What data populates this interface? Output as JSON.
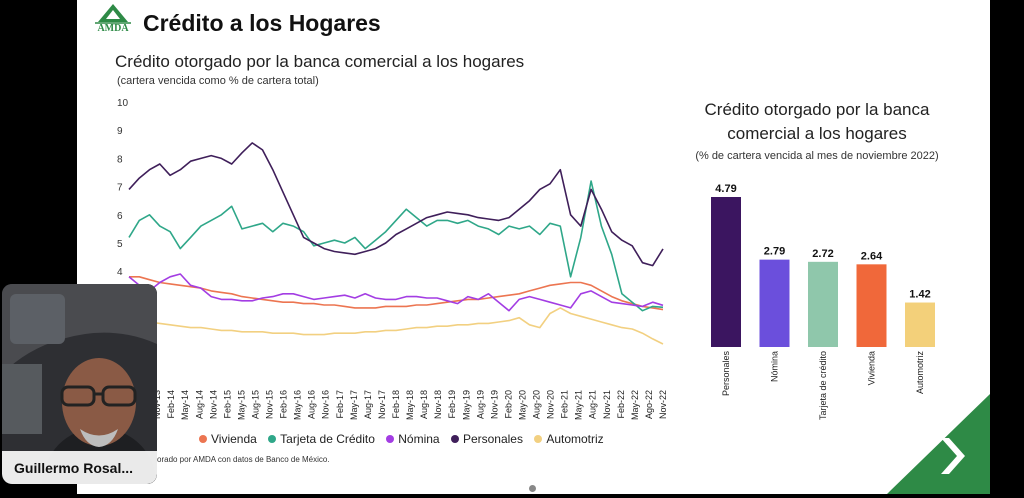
{
  "slide": {
    "logo_text": "AMDA",
    "title": "Crédito a los Hogares",
    "source_note": "orado por AMDA con datos de Banco de México."
  },
  "webcam": {
    "participant_name": "Guillermo Rosal..."
  },
  "chart_data": [
    {
      "type": "line",
      "title": "Crédito otorgado por la banca comercial a los hogares",
      "subtitle": "(cartera vencida como % de cartera total)",
      "ylim": [
        0,
        10
      ],
      "yticks": [
        "10",
        "9",
        "8",
        "7",
        "6",
        "5",
        "4"
      ],
      "xtick_labels": [
        "Aug-13",
        "Nov-13",
        "Feb-14",
        "May-14",
        "Aug-14",
        "Nov-14",
        "Feb-15",
        "May-15",
        "Aug-15",
        "Nov-15",
        "Feb-16",
        "May-16",
        "Aug-16",
        "Nov-16",
        "Feb-17",
        "May-17",
        "Aug-17",
        "Nov-17",
        "Feb-18",
        "May-18",
        "Aug-18",
        "Nov-18",
        "Feb-19",
        "May-19",
        "Aug-19",
        "Nov-19",
        "Feb-20",
        "May-20",
        "Aug-20",
        "Nov-20",
        "Feb-21",
        "May-21",
        "Aug-21",
        "Nov-21",
        "Feb-22",
        "May-22",
        "Ago-22",
        "Nov-22"
      ],
      "x_start_index": -1,
      "series": [
        {
          "name": "Vivienda",
          "color": "#ec7551",
          "values": [
            3.8,
            3.8,
            3.7,
            3.6,
            3.55,
            3.5,
            3.45,
            3.4,
            3.3,
            3.25,
            3.2,
            3.1,
            3.05,
            3.0,
            2.95,
            2.9,
            2.9,
            2.85,
            2.85,
            2.8,
            2.8,
            2.75,
            2.7,
            2.7,
            2.7,
            2.75,
            2.75,
            2.75,
            2.8,
            2.8,
            2.85,
            2.9,
            2.95,
            3.0,
            3.0,
            3.05,
            3.1,
            3.15,
            3.2,
            3.3,
            3.4,
            3.5,
            3.55,
            3.6,
            3.6,
            3.5,
            3.3,
            3.1,
            2.95,
            2.85,
            2.75,
            2.7,
            2.64
          ]
        },
        {
          "name": "Tarjeta de Crédito",
          "color": "#2fa789",
          "values": [
            5.2,
            5.8,
            6.0,
            5.6,
            5.4,
            4.8,
            5.2,
            5.6,
            5.8,
            6.0,
            6.3,
            5.5,
            5.6,
            5.7,
            5.4,
            5.7,
            5.6,
            5.4,
            4.9,
            5.0,
            5.1,
            5.0,
            5.2,
            4.8,
            5.1,
            5.4,
            5.8,
            6.2,
            5.9,
            5.6,
            5.8,
            5.8,
            5.7,
            5.8,
            5.6,
            5.5,
            5.3,
            5.6,
            5.5,
            5.6,
            5.3,
            5.7,
            5.6,
            3.8,
            5.2,
            7.2,
            5.6,
            4.6,
            3.2,
            2.9,
            2.6,
            2.75,
            2.72
          ]
        },
        {
          "name": "Nómina",
          "color": "#a33de3",
          "values": [
            3.8,
            3.5,
            3.3,
            3.6,
            3.8,
            3.9,
            3.5,
            3.4,
            3.1,
            3.0,
            3.0,
            2.95,
            2.95,
            3.05,
            3.1,
            3.2,
            3.2,
            3.1,
            3.0,
            3.05,
            3.1,
            3.15,
            3.05,
            3.2,
            3.05,
            3.0,
            3.0,
            3.1,
            3.1,
            3.05,
            3.05,
            2.95,
            2.85,
            3.1,
            3.0,
            3.2,
            2.9,
            2.6,
            3.0,
            3.1,
            3.0,
            2.9,
            2.8,
            2.7,
            3.2,
            3.3,
            3.1,
            2.9,
            2.85,
            2.8,
            2.75,
            2.9,
            2.79
          ]
        },
        {
          "name": "Personales",
          "color": "#3f1f5a",
          "values": [
            6.9,
            7.3,
            7.6,
            7.8,
            7.4,
            7.6,
            7.9,
            8.0,
            8.1,
            8.0,
            7.8,
            8.2,
            8.55,
            8.3,
            7.6,
            6.8,
            6.0,
            5.2,
            5.0,
            4.8,
            4.7,
            4.65,
            4.6,
            4.7,
            4.8,
            5.0,
            5.3,
            5.5,
            5.7,
            5.9,
            6.0,
            6.1,
            6.05,
            6.0,
            5.9,
            5.85,
            5.8,
            5.9,
            6.2,
            6.5,
            6.9,
            7.1,
            7.6,
            6.0,
            5.6,
            6.9,
            6.2,
            5.4,
            5.1,
            4.9,
            4.3,
            4.2,
            4.79
          ]
        },
        {
          "name": "Automotriz",
          "color": "#f2d081",
          "values": [
            2.4,
            2.3,
            2.2,
            2.15,
            2.1,
            2.05,
            2.0,
            2.0,
            1.95,
            1.9,
            1.9,
            1.85,
            1.85,
            1.85,
            1.8,
            1.8,
            1.8,
            1.75,
            1.75,
            1.75,
            1.8,
            1.8,
            1.8,
            1.85,
            1.85,
            1.9,
            1.9,
            1.95,
            2.0,
            2.0,
            2.05,
            2.05,
            2.1,
            2.1,
            2.15,
            2.15,
            2.2,
            2.25,
            2.35,
            2.1,
            2.0,
            2.5,
            2.7,
            2.5,
            2.4,
            2.3,
            2.2,
            2.1,
            2.0,
            1.95,
            1.8,
            1.6,
            1.42
          ]
        }
      ],
      "legend": [
        "Vivienda",
        "Tarjeta de Crédito",
        "Nómina",
        "Personales",
        "Automotriz"
      ]
    },
    {
      "type": "bar",
      "title": "Crédito otorgado por la banca comercial a los hogares",
      "subtitle": "(% de cartera vencida al mes de noviembre 2022)",
      "categories": [
        "Personales",
        "Nómina",
        "Tarjeta de crédito",
        "Vivienda",
        "Automotriz"
      ],
      "values": [
        4.79,
        2.79,
        2.72,
        2.64,
        1.42
      ],
      "value_labels": [
        "4.79",
        "2.79",
        "2.72",
        "2.64",
        "1.42"
      ],
      "colors": [
        "#3b1560",
        "#6b4fdc",
        "#8fc7ab",
        "#f0683a",
        "#f3d07a"
      ],
      "ylim": [
        0,
        5
      ]
    }
  ]
}
